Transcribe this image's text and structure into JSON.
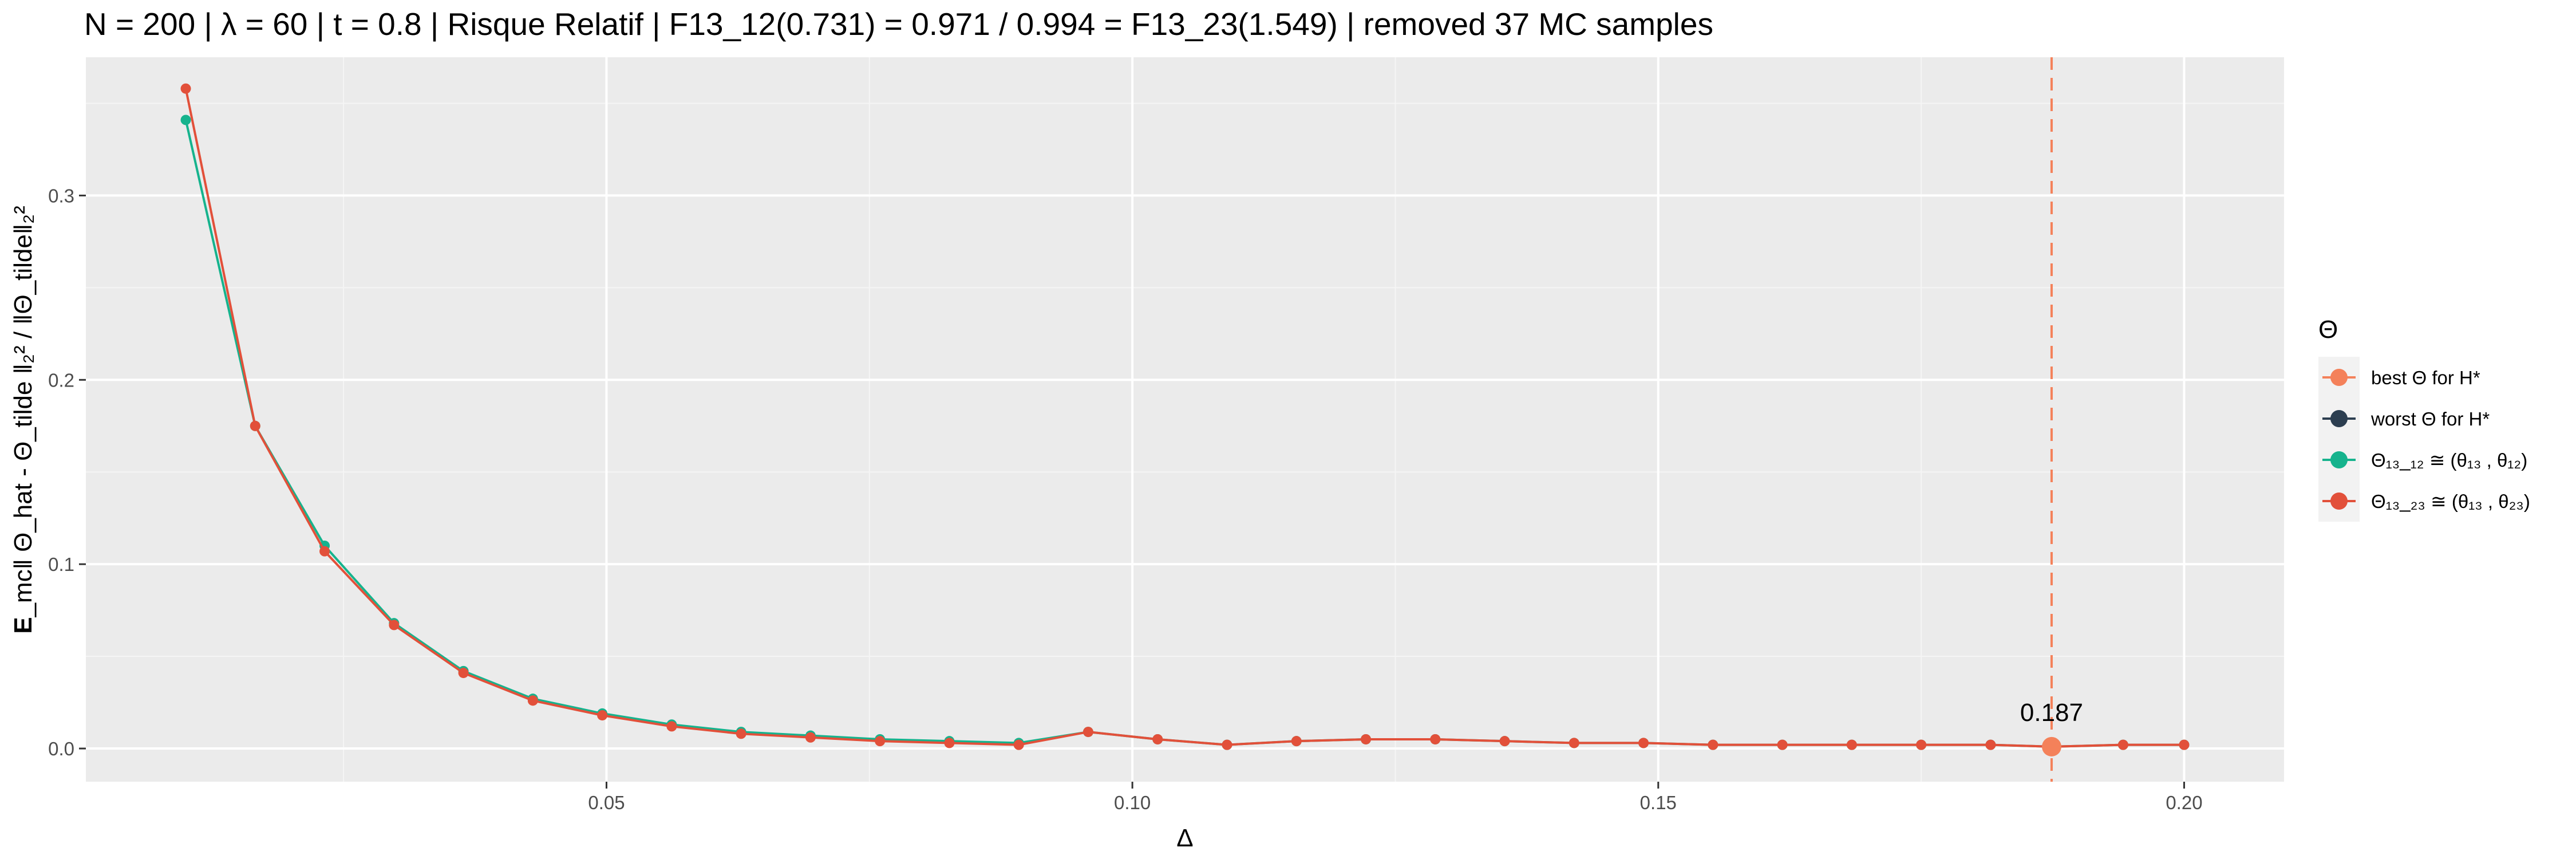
{
  "chart_data": {
    "type": "line",
    "title": "N = 200 | λ = 60 | t = 0.8 | Risque Relatif | F13_12(0.731) = 0.971 / 0.994 = F13_23(1.549) | removed 37 MC samples",
    "xlabel": "Δ",
    "ylabel_bold": "E",
    "ylabel_rest": "_mc‖ Θ_hat - Θ_tilde ‖₂²  /  ‖Θ_tilde‖₂²",
    "xlim": [
      0.0005,
      0.2095
    ],
    "ylim": [
      -0.018,
      0.375
    ],
    "x_ticks": [
      0.05,
      0.1,
      0.15,
      0.2
    ],
    "x_tick_labels": [
      "0.05",
      "0.10",
      "0.15",
      "0.20"
    ],
    "y_ticks": [
      0.0,
      0.1,
      0.2,
      0.3
    ],
    "y_tick_labels": [
      "0.0",
      "0.1",
      "0.2",
      "0.3"
    ],
    "grid": true,
    "legend_position": "right",
    "legend_title": "Θ",
    "legend": [
      {
        "label": "best Θ for H*",
        "color": "#F4815A"
      },
      {
        "label": "worst Θ for H*",
        "color": "#2C3E50"
      },
      {
        "label": "Θ₁₃_₁₂ ≅ (θ₁₃ , θ₁₂)",
        "color": "#16B38D"
      },
      {
        "label": "Θ₁₃_₂₃ ≅ (θ₁₃ , θ₂₃)",
        "color": "#E2503A"
      }
    ],
    "x": [
      0.01,
      0.0166,
      0.0232,
      0.0298,
      0.0364,
      0.043,
      0.0496,
      0.0562,
      0.0628,
      0.0694,
      0.076,
      0.0826,
      0.0892,
      0.0958,
      0.1024,
      0.109,
      0.1156,
      0.1222,
      0.1288,
      0.1354,
      0.142,
      0.1486,
      0.1552,
      0.1618,
      0.1684,
      0.175,
      0.1816,
      0.1874,
      0.1942,
      0.2
    ],
    "series": [
      {
        "name": "Θ₁₃_₁₂ ≅ (θ₁₃ , θ₁₂)",
        "color": "#16B38D",
        "values": [
          0.341,
          0.175,
          0.11,
          0.068,
          0.042,
          0.027,
          0.019,
          0.013,
          0.009,
          0.007,
          0.005,
          0.004,
          0.003,
          0.009,
          0.005,
          0.002,
          0.004,
          0.005,
          0.005,
          0.004,
          0.003,
          0.003,
          0.002,
          0.002,
          0.002,
          0.002,
          0.002,
          0.001,
          0.002,
          0.002
        ]
      },
      {
        "name": "Θ₁₃_₂₃ ≅ (θ₁₃ , θ₂₃)",
        "color": "#E2503A",
        "values": [
          0.358,
          0.175,
          0.107,
          0.067,
          0.041,
          0.026,
          0.018,
          0.012,
          0.008,
          0.006,
          0.004,
          0.003,
          0.002,
          0.009,
          0.005,
          0.002,
          0.004,
          0.005,
          0.005,
          0.004,
          0.003,
          0.003,
          0.002,
          0.002,
          0.002,
          0.002,
          0.002,
          0.001,
          0.002,
          0.002
        ]
      }
    ],
    "best_point": {
      "x": 0.1874,
      "y": 0.001,
      "label": "0.187",
      "color": "#F4815A"
    },
    "vline": {
      "x": 0.1874,
      "color": "#F4815A",
      "style": "dashed"
    }
  }
}
